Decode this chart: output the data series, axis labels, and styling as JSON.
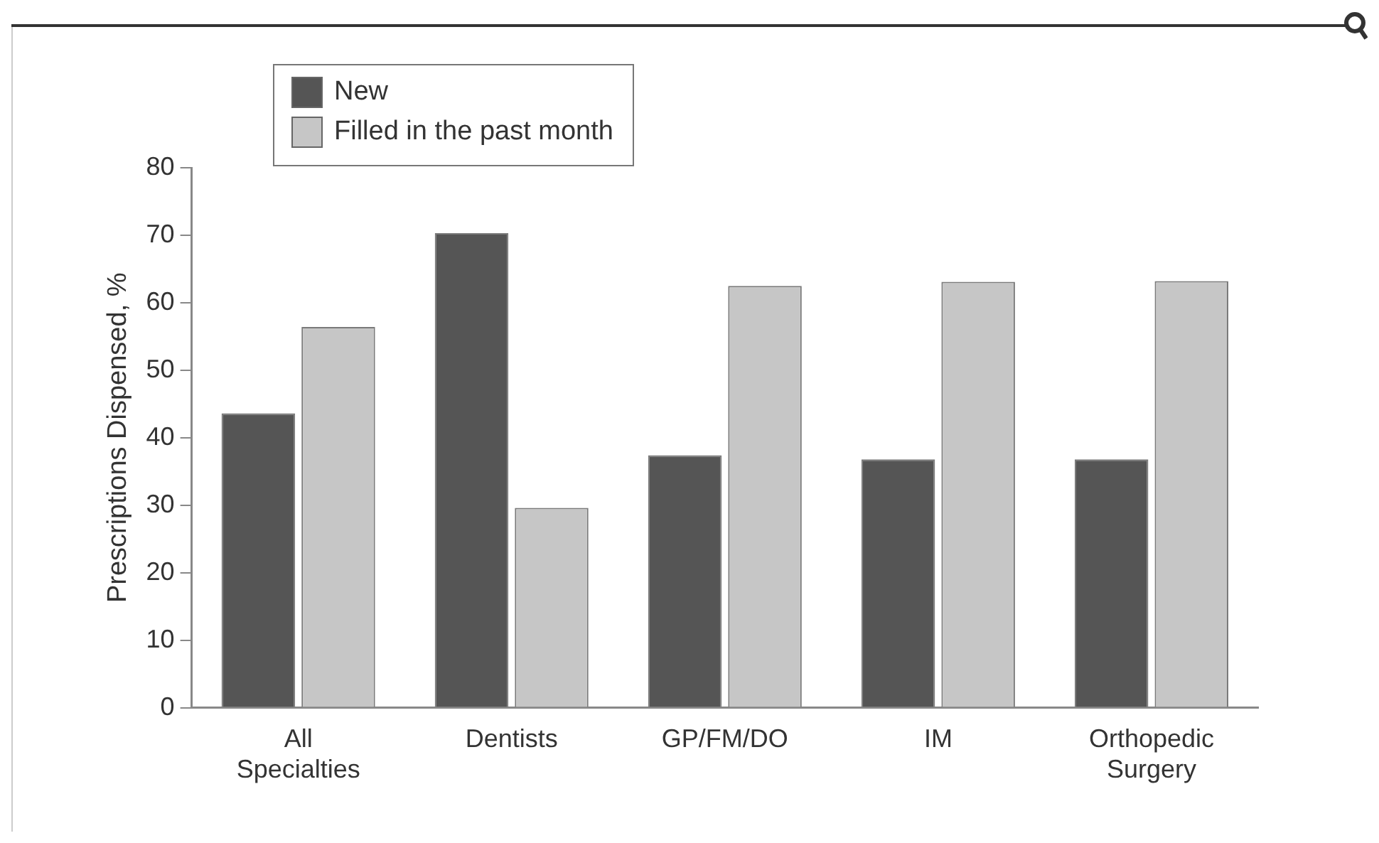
{
  "chart_data": {
    "type": "bar",
    "ylabel": "Prescriptions Dispensed, %",
    "categories": [
      "All Specialties",
      "Dentists",
      "GP/FM/DO",
      "IM",
      "Orthopedic Surgery"
    ],
    "series": [
      {
        "name": "New",
        "color": "#555555",
        "values": [
          43.6,
          70.3,
          37.4,
          36.8,
          36.8
        ]
      },
      {
        "name": "Filled in the past month",
        "color": "#c6c6c6",
        "values": [
          56.4,
          29.6,
          62.5,
          63.1,
          63.2
        ]
      }
    ],
    "ylim": [
      0,
      80
    ],
    "yticks": [
      0,
      10,
      20,
      30,
      40,
      50,
      60,
      70,
      80
    ],
    "legend": "top left"
  }
}
